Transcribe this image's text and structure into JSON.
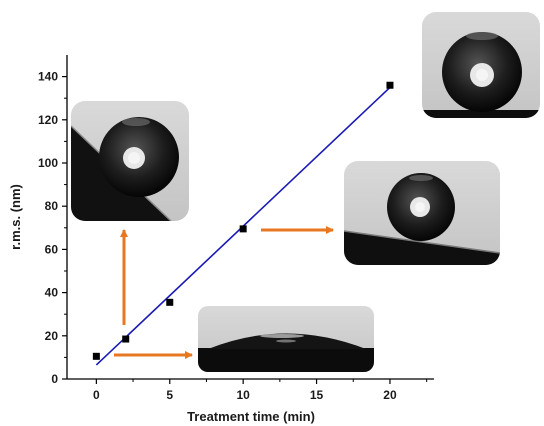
{
  "chart_data": {
    "type": "scatter",
    "xlabel": "Treatment time (min)",
    "ylabel": "r.m.s. (nm)",
    "xlim": [
      -2,
      23
    ],
    "ylim": [
      0,
      150
    ],
    "xticks": [
      0,
      5,
      10,
      15,
      20
    ],
    "yticks": [
      0,
      20,
      40,
      60,
      80,
      100,
      120,
      140
    ],
    "grid": false,
    "legend": "none",
    "series": [
      {
        "x": [
          0,
          2,
          5,
          10,
          20
        ],
        "y": [
          10.5,
          18.5,
          35.5,
          69.5,
          136
        ],
        "marker": "square",
        "color": "#000000"
      }
    ],
    "fit_line": {
      "x": [
        0,
        20
      ],
      "y": [
        6.5,
        135
      ],
      "color": "#1a1ab4"
    },
    "insets": [
      {
        "name": "droplet-flat",
        "attached_to_x": 2,
        "arrow": "right"
      },
      {
        "name": "droplet-tilted-surface",
        "attached_to_x": 2,
        "arrow": "up"
      },
      {
        "name": "droplet-sphere-on-slope",
        "attached_to_x": 10,
        "arrow": "right"
      },
      {
        "name": "droplet-sphere-on-flat",
        "attached_to_x": 20,
        "arrow": "none"
      }
    ],
    "colors": {
      "arrow": "#e87722",
      "axis": "#000000"
    }
  }
}
